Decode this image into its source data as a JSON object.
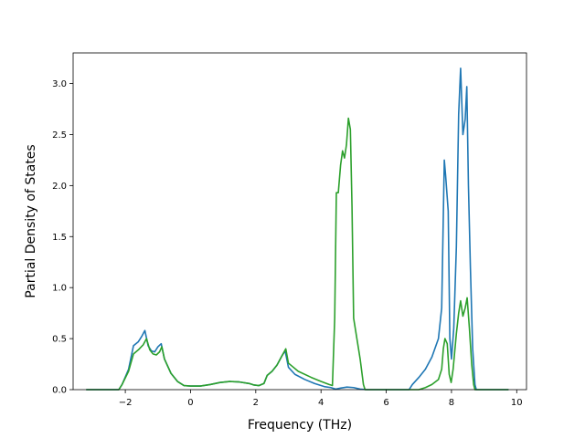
{
  "chart_data": {
    "type": "line",
    "title": "",
    "xlabel": "Frequency (THz)",
    "ylabel": "Partial Density of States",
    "xlim": [
      -3.6,
      10.3
    ],
    "ylim": [
      0,
      3.3
    ],
    "xticks": [
      -2,
      0,
      2,
      4,
      6,
      8,
      10
    ],
    "xtick_labels": [
      "−2",
      "0",
      "2",
      "4",
      "6",
      "8",
      "10"
    ],
    "yticks": [
      0.0,
      0.5,
      1.0,
      1.5,
      2.0,
      2.5,
      3.0
    ],
    "ytick_labels": [
      "0.0",
      "0.5",
      "1.0",
      "1.5",
      "2.0",
      "2.5",
      "3.0"
    ],
    "grid": false,
    "legend": "none",
    "series": [
      {
        "color": "#1f77b4",
        "points": [
          [
            -3.2,
            0
          ],
          [
            -2.2,
            0
          ],
          [
            -2.1,
            0.05
          ],
          [
            -1.9,
            0.2
          ],
          [
            -1.75,
            0.43
          ],
          [
            -1.6,
            0.47
          ],
          [
            -1.5,
            0.52
          ],
          [
            -1.4,
            0.58
          ],
          [
            -1.3,
            0.43
          ],
          [
            -1.2,
            0.38
          ],
          [
            -1.1,
            0.37
          ],
          [
            -1.0,
            0.42
          ],
          [
            -0.9,
            0.45
          ],
          [
            -0.8,
            0.3
          ],
          [
            -0.6,
            0.16
          ],
          [
            -0.4,
            0.08
          ],
          [
            -0.2,
            0.04
          ],
          [
            0.0,
            0.035
          ],
          [
            0.3,
            0.035
          ],
          [
            0.6,
            0.05
          ],
          [
            0.9,
            0.07
          ],
          [
            1.2,
            0.08
          ],
          [
            1.5,
            0.075
          ],
          [
            1.8,
            0.06
          ],
          [
            1.95,
            0.045
          ],
          [
            2.1,
            0.04
          ],
          [
            2.25,
            0.06
          ],
          [
            2.35,
            0.14
          ],
          [
            2.5,
            0.18
          ],
          [
            2.65,
            0.24
          ],
          [
            2.8,
            0.33
          ],
          [
            2.9,
            0.38
          ],
          [
            3.0,
            0.22
          ],
          [
            3.2,
            0.15
          ],
          [
            3.5,
            0.1
          ],
          [
            3.8,
            0.06
          ],
          [
            4.1,
            0.03
          ],
          [
            4.3,
            0.02
          ],
          [
            4.45,
            0.005
          ],
          [
            4.6,
            0.015
          ],
          [
            4.8,
            0.025
          ],
          [
            5.0,
            0.02
          ],
          [
            5.2,
            0.005
          ],
          [
            5.4,
            0.0
          ],
          [
            6.7,
            0.0
          ],
          [
            6.8,
            0.05
          ],
          [
            7.0,
            0.12
          ],
          [
            7.2,
            0.2
          ],
          [
            7.4,
            0.32
          ],
          [
            7.6,
            0.5
          ],
          [
            7.7,
            0.8
          ],
          [
            7.78,
            2.25
          ],
          [
            7.82,
            2.1
          ],
          [
            7.9,
            1.75
          ],
          [
            7.95,
            0.5
          ],
          [
            8.0,
            0.3
          ],
          [
            8.07,
            0.6
          ],
          [
            8.15,
            1.4
          ],
          [
            8.22,
            2.7
          ],
          [
            8.28,
            3.15
          ],
          [
            8.35,
            2.5
          ],
          [
            8.42,
            2.65
          ],
          [
            8.47,
            2.97
          ],
          [
            8.52,
            2.0
          ],
          [
            8.58,
            1.2
          ],
          [
            8.65,
            0.4
          ],
          [
            8.72,
            0.05
          ],
          [
            8.76,
            0.0
          ],
          [
            9.75,
            0.0
          ]
        ]
      },
      {
        "color": "#2ca02c",
        "points": [
          [
            -3.2,
            0
          ],
          [
            -2.2,
            0
          ],
          [
            -2.1,
            0.05
          ],
          [
            -1.9,
            0.18
          ],
          [
            -1.75,
            0.35
          ],
          [
            -1.6,
            0.39
          ],
          [
            -1.45,
            0.44
          ],
          [
            -1.35,
            0.5
          ],
          [
            -1.25,
            0.39
          ],
          [
            -1.15,
            0.35
          ],
          [
            -1.05,
            0.34
          ],
          [
            -0.95,
            0.37
          ],
          [
            -0.88,
            0.42
          ],
          [
            -0.8,
            0.3
          ],
          [
            -0.6,
            0.16
          ],
          [
            -0.4,
            0.08
          ],
          [
            -0.2,
            0.04
          ],
          [
            0.0,
            0.035
          ],
          [
            0.3,
            0.035
          ],
          [
            0.6,
            0.05
          ],
          [
            0.9,
            0.07
          ],
          [
            1.2,
            0.08
          ],
          [
            1.5,
            0.075
          ],
          [
            1.8,
            0.06
          ],
          [
            1.95,
            0.045
          ],
          [
            2.1,
            0.04
          ],
          [
            2.25,
            0.06
          ],
          [
            2.35,
            0.14
          ],
          [
            2.5,
            0.18
          ],
          [
            2.65,
            0.24
          ],
          [
            2.8,
            0.33
          ],
          [
            2.92,
            0.4
          ],
          [
            3.0,
            0.26
          ],
          [
            3.3,
            0.18
          ],
          [
            3.7,
            0.12
          ],
          [
            4.0,
            0.08
          ],
          [
            4.25,
            0.05
          ],
          [
            4.35,
            0.04
          ],
          [
            4.42,
            0.7
          ],
          [
            4.47,
            1.93
          ],
          [
            4.53,
            1.93
          ],
          [
            4.6,
            2.2
          ],
          [
            4.66,
            2.34
          ],
          [
            4.72,
            2.27
          ],
          [
            4.78,
            2.4
          ],
          [
            4.84,
            2.66
          ],
          [
            4.9,
            2.55
          ],
          [
            4.95,
            1.8
          ],
          [
            5.0,
            0.7
          ],
          [
            5.1,
            0.5
          ],
          [
            5.2,
            0.3
          ],
          [
            5.3,
            0.05
          ],
          [
            5.35,
            0.0
          ],
          [
            7.0,
            0.0
          ],
          [
            7.2,
            0.02
          ],
          [
            7.4,
            0.05
          ],
          [
            7.6,
            0.1
          ],
          [
            7.7,
            0.2
          ],
          [
            7.75,
            0.4
          ],
          [
            7.8,
            0.5
          ],
          [
            7.87,
            0.45
          ],
          [
            7.93,
            0.15
          ],
          [
            7.99,
            0.07
          ],
          [
            8.05,
            0.2
          ],
          [
            8.15,
            0.55
          ],
          [
            8.22,
            0.75
          ],
          [
            8.28,
            0.87
          ],
          [
            8.35,
            0.72
          ],
          [
            8.42,
            0.8
          ],
          [
            8.48,
            0.9
          ],
          [
            8.55,
            0.6
          ],
          [
            8.62,
            0.25
          ],
          [
            8.68,
            0.05
          ],
          [
            8.72,
            0.0
          ],
          [
            9.75,
            0.0
          ]
        ]
      }
    ]
  }
}
